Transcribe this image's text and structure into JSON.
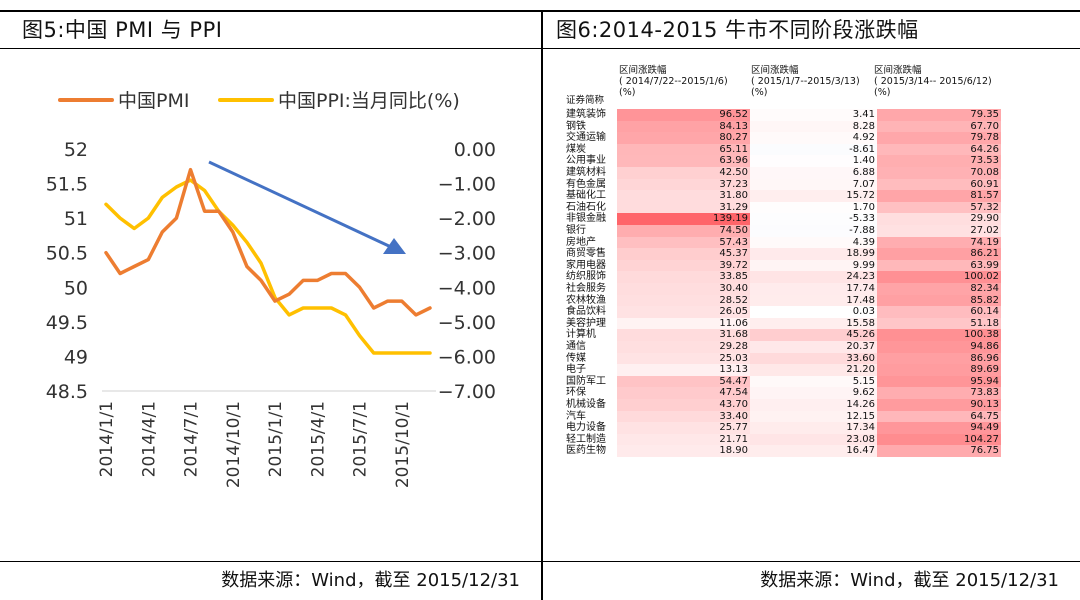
{
  "left_panel": {
    "title": "图5:中国 PMI 与 PPI",
    "source": "数据来源：Wind，截至 2015/12/31"
  },
  "right_panel": {
    "title": "图6:2014-2015 牛市不同阶段涨跌幅",
    "source": "数据来源：Wind，截至 2015/12/31"
  },
  "colors": {
    "pmi": "#ED7D31",
    "ppi": "#FFC000",
    "arrow": "#4472C4"
  },
  "chart_data": [
    {
      "type": "line",
      "title": "",
      "legend": [
        "中国PMI",
        "中国PPI:当月同比(%)"
      ],
      "legend_position": "top",
      "x_tick_labels": [
        "2014/1/1",
        "2014/4/1",
        "2014/7/1",
        "2014/10/1",
        "2015/1/1",
        "2015/4/1",
        "2015/7/1",
        "2015/10/1"
      ],
      "left_axis": {
        "ticks": [
          "52",
          "51.5",
          "51",
          "50.5",
          "50",
          "49.5",
          "49",
          "48.5"
        ],
        "range": [
          48.5,
          52
        ]
      },
      "right_axis": {
        "ticks": [
          "0.00",
          "−1.00",
          "−2.00",
          "−3.00",
          "−4.00",
          "−5.00",
          "−6.00",
          "−7.00"
        ],
        "range": [
          -7,
          0
        ]
      },
      "grid": false,
      "series": [
        {
          "name": "中国PMI",
          "axis": "left",
          "values": [
            50.5,
            50.2,
            50.3,
            50.4,
            50.8,
            51.0,
            51.7,
            51.1,
            51.1,
            50.8,
            50.3,
            50.1,
            49.8,
            49.9,
            50.1,
            50.1,
            50.2,
            50.2,
            50.0,
            49.7,
            49.8,
            49.8,
            49.6,
            49.7
          ]
        },
        {
          "name": "中国PPI:当月同比(%)",
          "axis": "right",
          "values": [
            -1.6,
            -2.0,
            -2.3,
            -2.0,
            -1.4,
            -1.1,
            -0.9,
            -1.2,
            -1.8,
            -2.2,
            -2.7,
            -3.3,
            -4.3,
            -4.8,
            -4.6,
            -4.6,
            -4.6,
            -4.8,
            -5.4,
            -5.9,
            -5.9,
            -5.9,
            -5.9,
            -5.9
          ]
        }
      ],
      "annotation": "downward trend arrow"
    },
    {
      "type": "table",
      "columns": [
        {
          "title": "区间涨跌幅",
          "period": "( 2014/7/22--2015/1/6)",
          "unit": "(%)"
        },
        {
          "title": "区间涨跌幅",
          "period": "( 2015/1/7--2015/3/13)",
          "unit": "(%)"
        },
        {
          "title": "区间涨跌幅",
          "period": "( 2015/3/14-- 2015/6/12)",
          "unit": "(%)"
        }
      ],
      "row_header": "证券简称",
      "rows": [
        {
          "name": "建筑装饰",
          "v": [
            "96.52",
            "3.41",
            "79.35"
          ]
        },
        {
          "name": "钢铁",
          "v": [
            "84.13",
            "8.28",
            "67.70"
          ]
        },
        {
          "name": "交通运输",
          "v": [
            "80.27",
            "4.92",
            "79.78"
          ]
        },
        {
          "name": "煤炭",
          "v": [
            "65.11",
            "-8.61",
            "64.26"
          ]
        },
        {
          "name": "公用事业",
          "v": [
            "63.96",
            "1.40",
            "73.53"
          ]
        },
        {
          "name": "建筑材料",
          "v": [
            "42.50",
            "6.88",
            "70.08"
          ]
        },
        {
          "name": "有色金属",
          "v": [
            "37.23",
            "7.07",
            "60.91"
          ]
        },
        {
          "name": "基础化工",
          "v": [
            "31.80",
            "15.72",
            "81.57"
          ]
        },
        {
          "name": "石油石化",
          "v": [
            "31.29",
            "1.70",
            "57.32"
          ]
        },
        {
          "name": "非银金融",
          "v": [
            "139.19",
            "-5.33",
            "29.90"
          ]
        },
        {
          "name": "银行",
          "v": [
            "74.50",
            "-7.88",
            "27.02"
          ]
        },
        {
          "name": "房地产",
          "v": [
            "57.43",
            "4.39",
            "74.19"
          ]
        },
        {
          "name": "商贸零售",
          "v": [
            "45.37",
            "18.99",
            "86.21"
          ]
        },
        {
          "name": "家用电器",
          "v": [
            "39.72",
            "9.99",
            "63.99"
          ]
        },
        {
          "name": "纺织服饰",
          "v": [
            "33.85",
            "24.23",
            "100.02"
          ]
        },
        {
          "name": "社会服务",
          "v": [
            "30.40",
            "17.74",
            "82.34"
          ]
        },
        {
          "name": "农林牧渔",
          "v": [
            "28.52",
            "17.48",
            "85.82"
          ]
        },
        {
          "name": "食品饮料",
          "v": [
            "26.05",
            "0.03",
            "60.14"
          ]
        },
        {
          "name": "美容护理",
          "v": [
            "11.06",
            "15.58",
            "51.18"
          ]
        },
        {
          "name": "计算机",
          "v": [
            "31.68",
            "45.26",
            "100.38"
          ]
        },
        {
          "name": "通信",
          "v": [
            "29.28",
            "20.37",
            "94.86"
          ]
        },
        {
          "name": "传媒",
          "v": [
            "25.03",
            "33.60",
            "86.96"
          ]
        },
        {
          "name": "电子",
          "v": [
            "13.13",
            "21.20",
            "89.69"
          ]
        },
        {
          "name": "国防军工",
          "v": [
            "54.47",
            "5.15",
            "95.94"
          ]
        },
        {
          "name": "环保",
          "v": [
            "47.54",
            "9.62",
            "73.83"
          ]
        },
        {
          "name": "机械设备",
          "v": [
            "43.70",
            "14.26",
            "90.13"
          ]
        },
        {
          "name": "汽车",
          "v": [
            "33.40",
            "12.15",
            "64.75"
          ]
        },
        {
          "name": "电力设备",
          "v": [
            "25.77",
            "17.34",
            "94.49"
          ]
        },
        {
          "name": "轻工制造",
          "v": [
            "21.71",
            "23.08",
            "104.27"
          ]
        },
        {
          "name": "医药生物",
          "v": [
            "18.90",
            "16.47",
            "76.75"
          ]
        }
      ]
    }
  ]
}
